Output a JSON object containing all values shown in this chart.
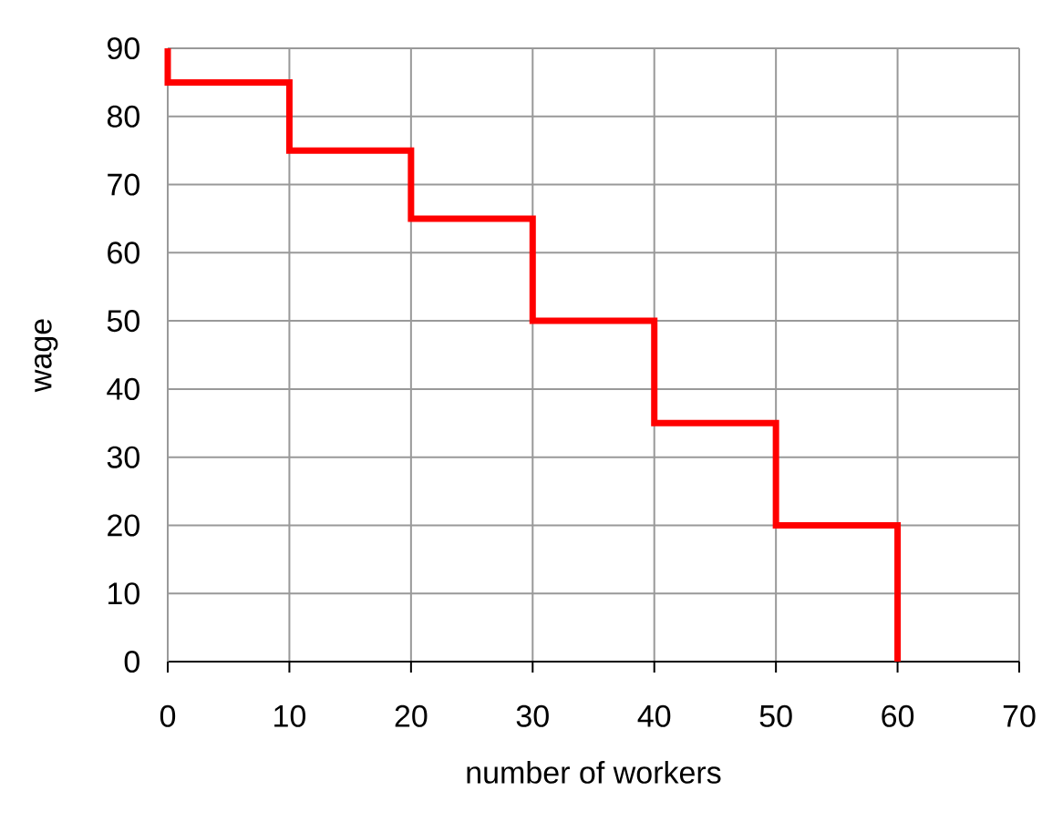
{
  "chart_data": {
    "type": "line",
    "xlabel": "number of workers",
    "ylabel": "wage",
    "x": [
      0,
      0,
      10,
      10,
      20,
      20,
      30,
      30,
      40,
      40,
      50,
      50,
      60,
      60
    ],
    "series": [
      {
        "color": "#ff0000",
        "values": [
          90,
          85,
          85,
          75,
          75,
          65,
          65,
          50,
          50,
          35,
          35,
          20,
          20,
          0
        ]
      }
    ],
    "xlim": [
      0,
      70
    ],
    "ylim": [
      0,
      90
    ],
    "xticks": [
      0,
      10,
      20,
      30,
      40,
      50,
      60,
      70
    ],
    "yticks": [
      0,
      10,
      20,
      30,
      40,
      50,
      60,
      70,
      80,
      90
    ],
    "grid": true,
    "marker": "none",
    "line_style": "solid"
  }
}
